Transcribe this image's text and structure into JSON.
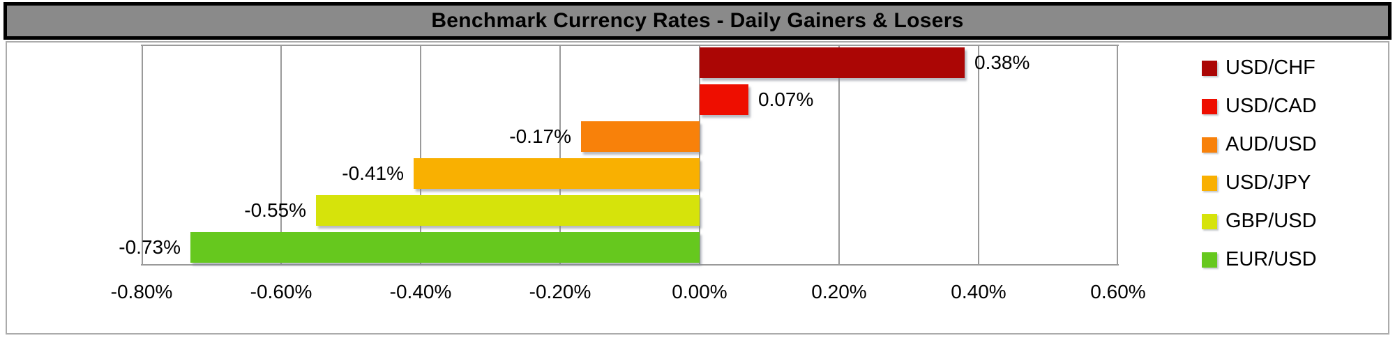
{
  "title": "Benchmark Currency Rates - Daily Gainers & Losers",
  "colors": {
    "title_bar_bg": "#8A8A8A",
    "title_text": "#000000",
    "title_border": "#000000",
    "chart_bg": "#FFFFFF",
    "chart_border": "#ABABAB",
    "gridline": "#9A9A9A",
    "axis_text": "#000000",
    "value_label_text": "#000000"
  },
  "chart_data": {
    "type": "bar",
    "orientation": "horizontal",
    "title": "Benchmark Currency Rates - Daily Gainers & Losers",
    "categories": [
      "USD/CHF",
      "USD/CAD",
      "AUD/USD",
      "USD/JPY",
      "GBP/USD",
      "EUR/USD"
    ],
    "values": [
      0.38,
      0.07,
      -0.17,
      -0.41,
      -0.55,
      -0.73
    ],
    "value_labels": [
      "0.38%",
      "0.07%",
      "-0.17%",
      "-0.41%",
      "-0.55%",
      "-0.73%"
    ],
    "bar_colors": [
      "#AB0605",
      "#EE0E00",
      "#F8810A",
      "#F9B001",
      "#D6E30B",
      "#66C81E"
    ],
    "xlabel": "",
    "ylabel": "",
    "xlim": [
      -0.8,
      0.6
    ],
    "x_ticks": [
      {
        "value": -0.8,
        "label": "-0.80%"
      },
      {
        "value": -0.6,
        "label": "-0.60%"
      },
      {
        "value": -0.4,
        "label": "-0.40%"
      },
      {
        "value": -0.2,
        "label": "-0.20%"
      },
      {
        "value": 0.0,
        "label": "0.00%"
      },
      {
        "value": 0.2,
        "label": "0.20%"
      },
      {
        "value": 0.4,
        "label": "0.40%"
      },
      {
        "value": 0.6,
        "label": "0.60%"
      }
    ],
    "grid": true,
    "legend_position": "right"
  }
}
